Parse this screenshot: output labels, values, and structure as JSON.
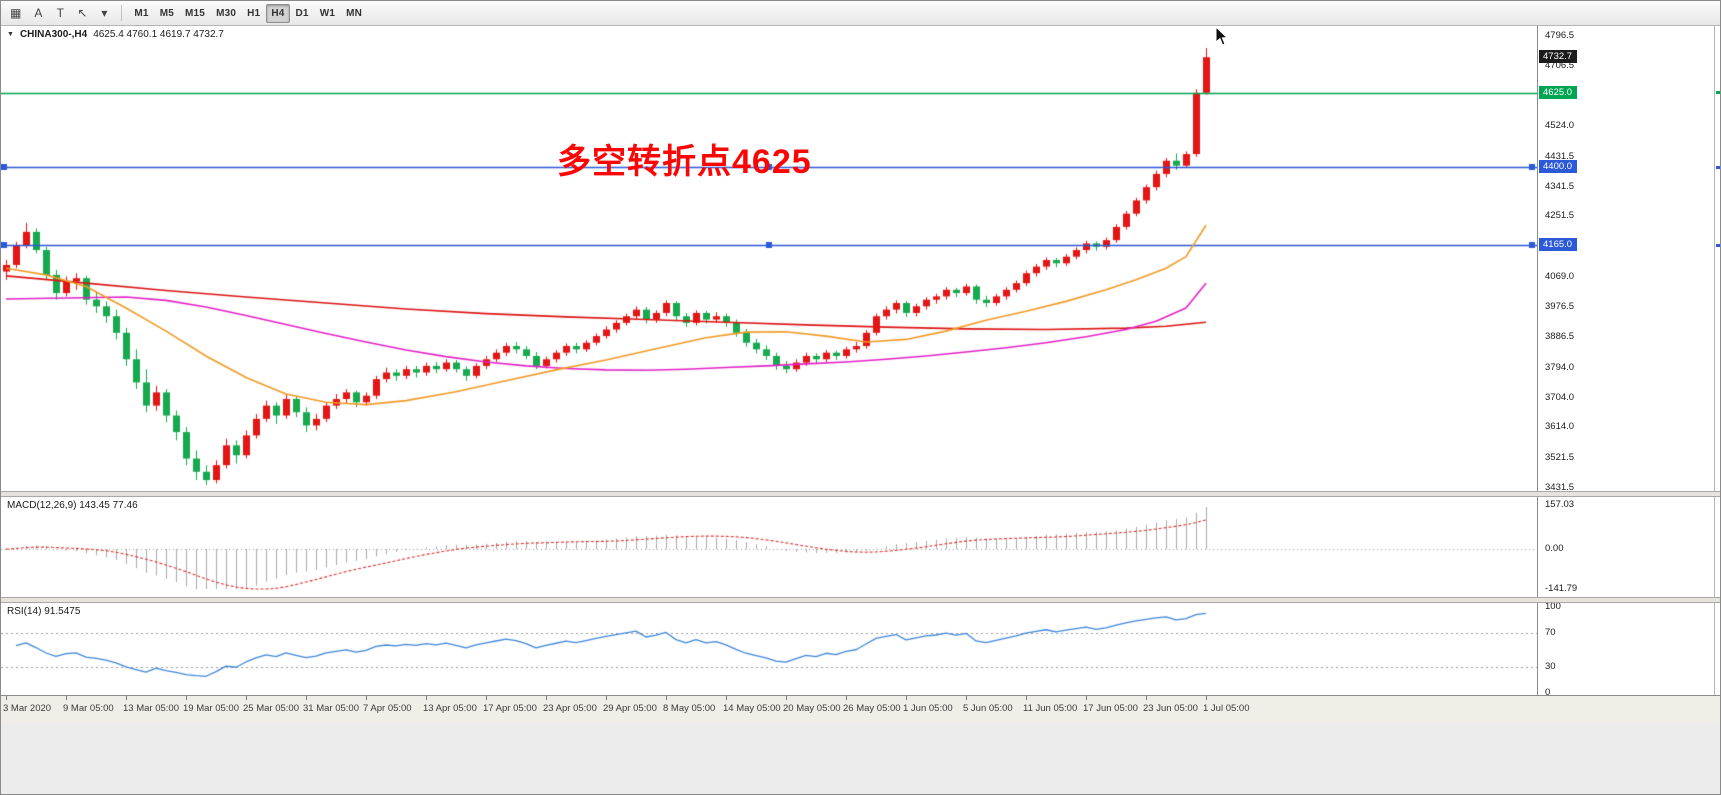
{
  "toolbar": {
    "icon_buttons": [
      {
        "name": "chart-grid-icon",
        "glyph": "▦"
      },
      {
        "name": "text-annotation-icon",
        "glyph": "A"
      },
      {
        "name": "drawing-tool-icon",
        "glyph": "T"
      },
      {
        "name": "cursor-tool-icon",
        "glyph": "↖"
      },
      {
        "name": "dropdown-caret-icon",
        "glyph": "▾"
      }
    ],
    "timeframes": [
      "M1",
      "M5",
      "M15",
      "M30",
      "H1",
      "H4",
      "D1",
      "W1",
      "MN"
    ],
    "active_timeframe": "H4"
  },
  "header": {
    "dropdown_glyph": "▼",
    "symbol": "CHINA300-,H4",
    "ohlc": "4625.4 4760.1 4619.7 4732.7"
  },
  "annotation": {
    "text": "多空转折点4625",
    "color": "#fe0505"
  },
  "price_axis": {
    "ticks": [
      "4796.5",
      "4706.5",
      "4616.5",
      "4524.0",
      "4431.5",
      "4341.5",
      "4251.5",
      "4161.5",
      "4069.0",
      "3976.5",
      "3886.5",
      "3794.0",
      "3704.0",
      "3614.0",
      "3521.5",
      "3431.5"
    ],
    "current_price": {
      "label": "4732.7",
      "value": 4732.7,
      "bg": "#1c1c1c"
    },
    "level_tags": [
      {
        "label": "4625.0",
        "value": 4625.0,
        "bg": "#00a551"
      },
      {
        "label": "4400.0",
        "value": 4400.0,
        "bg": "#2b59d8"
      },
      {
        "label": "4165.0",
        "value": 4165.0,
        "bg": "#2b59d8"
      }
    ]
  },
  "time_axis": {
    "labels": [
      "3 Mar 2020",
      "9 Mar 05:00",
      "13 Mar 05:00",
      "19 Mar 05:00",
      "25 Mar 05:00",
      "31 Mar 05:00",
      "7 Apr 05:00",
      "13 Apr 05:00",
      "17 Apr 05:00",
      "23 Apr 05:00",
      "29 Apr 05:00",
      "8 May 05:00",
      "14 May 05:00",
      "20 May 05:00",
      "26 May 05:00",
      "1 Jun 05:00",
      "5 Jun 05:00",
      "11 Jun 05:00",
      "17 Jun 05:00",
      "23 Jun 05:00",
      "1 Jul 05:00"
    ],
    "candles_per_label": 6
  },
  "macd_panel": {
    "label": "MACD(12,26,9) 143.45 77.46",
    "scale_labels": [
      "157.03",
      "0.00",
      "-141.79"
    ]
  },
  "rsi_panel": {
    "label": "RSI(14) 91.5475",
    "scale_labels": [
      "100",
      "70",
      "30",
      "0"
    ]
  },
  "chart_data": {
    "type": "candlestick",
    "symbol": "CHINA300-",
    "timeframe": "H4",
    "title": "CHINA300- H4 chart with turning-point annotation 4625",
    "last_bar": {
      "open": 4625.4,
      "high": 4760.1,
      "low": 4619.7,
      "close": 4732.7
    },
    "price_range": [
      3422,
      4827
    ],
    "colors": {
      "up": "#e31515",
      "down": "#17a94e",
      "ma_fast": "#f09a26",
      "ma_mid": "#e322c6",
      "ma_slow": "#dc1414",
      "macd_hist": "#a8a8a8",
      "macd_signal": "#e03030",
      "rsi_line": "#3f86d8",
      "level_green": "#00a551",
      "level_blue": "#2b59d8"
    },
    "hlines": [
      {
        "price": 4625,
        "color": "#00a551",
        "handles": false
      },
      {
        "price": 4400,
        "color": "#2b59d8",
        "handles": true
      },
      {
        "price": 4165,
        "color": "#2b59d8",
        "handles": true
      }
    ],
    "indicators": {
      "macd": {
        "fast": 12,
        "slow": 26,
        "signal": 9,
        "current_main": 143.45,
        "current_signal": 77.46,
        "scale": [
          -141.79,
          157.03
        ]
      },
      "rsi": {
        "period": 14,
        "current": 91.5475,
        "levels": [
          30,
          70
        ]
      }
    },
    "ma_overlays": {
      "ma_fast": [
        [
          0,
          4095
        ],
        [
          4,
          4075
        ],
        [
          8,
          4040
        ],
        [
          12,
          3975
        ],
        [
          16,
          3905
        ],
        [
          20,
          3830
        ],
        [
          24,
          3765
        ],
        [
          28,
          3715
        ],
        [
          32,
          3690
        ],
        [
          36,
          3683
        ],
        [
          40,
          3695
        ],
        [
          45,
          3722
        ],
        [
          50,
          3755
        ],
        [
          55,
          3788
        ],
        [
          60,
          3818
        ],
        [
          65,
          3852
        ],
        [
          70,
          3885
        ],
        [
          74,
          3902
        ],
        [
          78,
          3903
        ],
        [
          82,
          3890
        ],
        [
          86,
          3872
        ],
        [
          90,
          3880
        ],
        [
          94,
          3905
        ],
        [
          98,
          3938
        ],
        [
          102,
          3965
        ],
        [
          106,
          3995
        ],
        [
          110,
          4030
        ],
        [
          113,
          4060
        ],
        [
          116,
          4095
        ],
        [
          118,
          4130
        ],
        [
          120,
          4225
        ]
      ],
      "ma_mid": [
        [
          0,
          4002
        ],
        [
          6,
          4005
        ],
        [
          12,
          4008
        ],
        [
          16,
          3998
        ],
        [
          20,
          3978
        ],
        [
          24,
          3952
        ],
        [
          28,
          3925
        ],
        [
          32,
          3898
        ],
        [
          36,
          3872
        ],
        [
          40,
          3848
        ],
        [
          44,
          3828
        ],
        [
          48,
          3812
        ],
        [
          52,
          3800
        ],
        [
          56,
          3792
        ],
        [
          60,
          3788
        ],
        [
          64,
          3787
        ],
        [
          68,
          3790
        ],
        [
          72,
          3795
        ],
        [
          76,
          3800
        ],
        [
          80,
          3806
        ],
        [
          84,
          3812
        ],
        [
          88,
          3820
        ],
        [
          92,
          3830
        ],
        [
          96,
          3842
        ],
        [
          100,
          3855
        ],
        [
          104,
          3870
        ],
        [
          108,
          3888
        ],
        [
          112,
          3910
        ],
        [
          115,
          3935
        ],
        [
          118,
          3975
        ],
        [
          120,
          4050
        ]
      ],
      "ma_slow": [
        [
          0,
          4072
        ],
        [
          8,
          4050
        ],
        [
          16,
          4028
        ],
        [
          24,
          4008
        ],
        [
          32,
          3990
        ],
        [
          40,
          3972
        ],
        [
          48,
          3958
        ],
        [
          56,
          3948
        ],
        [
          64,
          3940
        ],
        [
          72,
          3932
        ],
        [
          80,
          3924
        ],
        [
          88,
          3917
        ],
        [
          96,
          3912
        ],
        [
          104,
          3910
        ],
        [
          112,
          3914
        ],
        [
          116,
          3920
        ],
        [
          120,
          3932
        ]
      ]
    },
    "candles": [
      [
        4085,
        4120,
        4060,
        4105
      ],
      [
        4105,
        4175,
        4095,
        4165
      ],
      [
        4165,
        4232,
        4155,
        4205
      ],
      [
        4205,
        4215,
        4140,
        4150
      ],
      [
        4150,
        4160,
        4060,
        4075
      ],
      [
        4075,
        4090,
        4000,
        4020
      ],
      [
        4020,
        4070,
        4010,
        4055
      ],
      [
        4055,
        4080,
        4030,
        4065
      ],
      [
        4065,
        4072,
        3985,
        4000
      ],
      [
        4000,
        4025,
        3960,
        3980
      ],
      [
        3980,
        3995,
        3930,
        3950
      ],
      [
        3950,
        3970,
        3880,
        3900
      ],
      [
        3900,
        3915,
        3800,
        3820
      ],
      [
        3820,
        3850,
        3730,
        3750
      ],
      [
        3750,
        3790,
        3660,
        3680
      ],
      [
        3680,
        3740,
        3665,
        3720
      ],
      [
        3720,
        3730,
        3630,
        3650
      ],
      [
        3650,
        3665,
        3575,
        3600
      ],
      [
        3600,
        3615,
        3500,
        3520
      ],
      [
        3520,
        3545,
        3455,
        3480
      ],
      [
        3480,
        3500,
        3440,
        3455
      ],
      [
        3455,
        3515,
        3445,
        3500
      ],
      [
        3500,
        3580,
        3490,
        3560
      ],
      [
        3560,
        3575,
        3505,
        3530
      ],
      [
        3530,
        3605,
        3520,
        3590
      ],
      [
        3590,
        3655,
        3580,
        3640
      ],
      [
        3640,
        3695,
        3630,
        3680
      ],
      [
        3680,
        3690,
        3625,
        3650
      ],
      [
        3650,
        3715,
        3640,
        3700
      ],
      [
        3700,
        3710,
        3645,
        3660
      ],
      [
        3660,
        3675,
        3600,
        3620
      ],
      [
        3620,
        3655,
        3605,
        3640
      ],
      [
        3640,
        3690,
        3630,
        3680
      ],
      [
        3680,
        3715,
        3670,
        3700
      ],
      [
        3700,
        3730,
        3685,
        3720
      ],
      [
        3720,
        3725,
        3675,
        3690
      ],
      [
        3690,
        3720,
        3680,
        3710
      ],
      [
        3710,
        3770,
        3700,
        3760
      ],
      [
        3760,
        3795,
        3750,
        3780
      ],
      [
        3780,
        3790,
        3755,
        3770
      ],
      [
        3770,
        3800,
        3760,
        3790
      ],
      [
        3790,
        3800,
        3765,
        3780
      ],
      [
        3780,
        3810,
        3770,
        3800
      ],
      [
        3800,
        3812,
        3778,
        3790
      ],
      [
        3790,
        3820,
        3782,
        3810
      ],
      [
        3810,
        3818,
        3780,
        3790
      ],
      [
        3790,
        3798,
        3755,
        3770
      ],
      [
        3770,
        3808,
        3762,
        3800
      ],
      [
        3800,
        3830,
        3790,
        3820
      ],
      [
        3820,
        3850,
        3812,
        3840
      ],
      [
        3840,
        3870,
        3830,
        3860
      ],
      [
        3860,
        3872,
        3838,
        3850
      ],
      [
        3850,
        3860,
        3820,
        3830
      ],
      [
        3830,
        3842,
        3790,
        3800
      ],
      [
        3800,
        3828,
        3792,
        3820
      ],
      [
        3820,
        3848,
        3810,
        3840
      ],
      [
        3840,
        3868,
        3830,
        3860
      ],
      [
        3860,
        3870,
        3838,
        3850
      ],
      [
        3850,
        3878,
        3842,
        3870
      ],
      [
        3870,
        3898,
        3862,
        3890
      ],
      [
        3890,
        3920,
        3882,
        3910
      ],
      [
        3910,
        3938,
        3900,
        3930
      ],
      [
        3930,
        3958,
        3922,
        3950
      ],
      [
        3950,
        3980,
        3940,
        3970
      ],
      [
        3970,
        3978,
        3928,
        3940
      ],
      [
        3940,
        3968,
        3930,
        3960
      ],
      [
        3960,
        3998,
        3950,
        3990
      ],
      [
        3990,
        3995,
        3938,
        3950
      ],
      [
        3950,
        3960,
        3918,
        3930
      ],
      [
        3930,
        3968,
        3922,
        3960
      ],
      [
        3960,
        3966,
        3928,
        3940
      ],
      [
        3940,
        3962,
        3930,
        3950
      ],
      [
        3950,
        3958,
        3918,
        3930
      ],
      [
        3930,
        3940,
        3888,
        3900
      ],
      [
        3900,
        3912,
        3858,
        3870
      ],
      [
        3870,
        3882,
        3838,
        3850
      ],
      [
        3850,
        3862,
        3818,
        3830
      ],
      [
        3830,
        3840,
        3788,
        3800
      ],
      [
        3800,
        3815,
        3778,
        3790
      ],
      [
        3790,
        3820,
        3782,
        3810
      ],
      [
        3810,
        3840,
        3800,
        3830
      ],
      [
        3830,
        3838,
        3808,
        3820
      ],
      [
        3820,
        3848,
        3812,
        3840
      ],
      [
        3840,
        3846,
        3818,
        3830
      ],
      [
        3830,
        3858,
        3822,
        3850
      ],
      [
        3850,
        3872,
        3840,
        3860
      ],
      [
        3860,
        3908,
        3852,
        3900
      ],
      [
        3900,
        3958,
        3892,
        3950
      ],
      [
        3950,
        3980,
        3940,
        3970
      ],
      [
        3970,
        3998,
        3958,
        3990
      ],
      [
        3990,
        3996,
        3948,
        3960
      ],
      [
        3960,
        3988,
        3950,
        3980
      ],
      [
        3980,
        4008,
        3970,
        4000
      ],
      [
        4000,
        4018,
        3988,
        4010
      ],
      [
        4010,
        4038,
        4000,
        4030
      ],
      [
        4030,
        4036,
        4008,
        4020
      ],
      [
        4020,
        4048,
        4012,
        4040
      ],
      [
        4040,
        4046,
        3988,
        4000
      ],
      [
        4000,
        4012,
        3978,
        3990
      ],
      [
        3990,
        4018,
        3982,
        4010
      ],
      [
        4010,
        4038,
        4000,
        4030
      ],
      [
        4030,
        4058,
        4022,
        4050
      ],
      [
        4050,
        4088,
        4042,
        4080
      ],
      [
        4080,
        4108,
        4070,
        4100
      ],
      [
        4100,
        4128,
        4090,
        4120
      ],
      [
        4120,
        4126,
        4098,
        4110
      ],
      [
        4110,
        4138,
        4102,
        4130
      ],
      [
        4130,
        4158,
        4122,
        4150
      ],
      [
        4150,
        4178,
        4140,
        4170
      ],
      [
        4170,
        4176,
        4148,
        4160
      ],
      [
        4160,
        4188,
        4152,
        4180
      ],
      [
        4180,
        4228,
        4172,
        4220
      ],
      [
        4220,
        4268,
        4212,
        4260
      ],
      [
        4260,
        4308,
        4252,
        4300
      ],
      [
        4300,
        4348,
        4290,
        4340
      ],
      [
        4340,
        4390,
        4330,
        4380
      ],
      [
        4380,
        4428,
        4370,
        4420
      ],
      [
        4420,
        4442,
        4392,
        4405
      ],
      [
        4405,
        4448,
        4398,
        4440
      ],
      [
        4440,
        4636,
        4432,
        4625
      ],
      [
        4625.4,
        4760.1,
        4619.7,
        4732.7
      ]
    ]
  }
}
